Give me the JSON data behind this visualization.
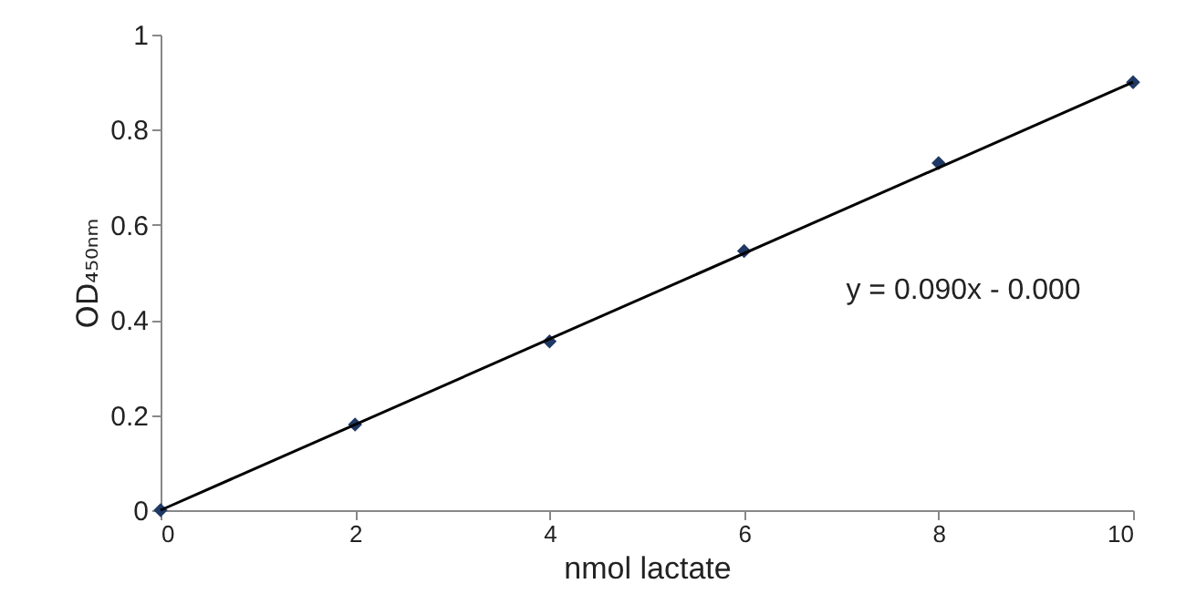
{
  "chart_data": {
    "type": "scatter",
    "xlabel": "nmol lactate",
    "ylabel": "OD₄₅₀ₙₘ",
    "x": [
      0,
      2,
      4,
      6,
      8,
      10
    ],
    "series": [
      {
        "type": "scatter",
        "color": "#1f3864",
        "values": [
          0,
          0.18,
          0.355,
          0.545,
          0.73,
          0.9
        ],
        "marker": "diamond"
      },
      {
        "type": "line",
        "color": "#000000",
        "x": [
          0,
          10
        ],
        "values": [
          0,
          0.9
        ],
        "marker": "none",
        "line_style": "solid"
      }
    ],
    "annotations": [
      "y = 0.090x - 0.000"
    ],
    "xlim": [
      0,
      10
    ],
    "xticks": [
      0,
      2,
      4,
      6,
      8,
      10
    ],
    "ylim": [
      0,
      1
    ],
    "yticks": [
      0,
      0.2,
      0.4,
      0.6,
      0.8,
      1
    ],
    "grid": false
  }
}
